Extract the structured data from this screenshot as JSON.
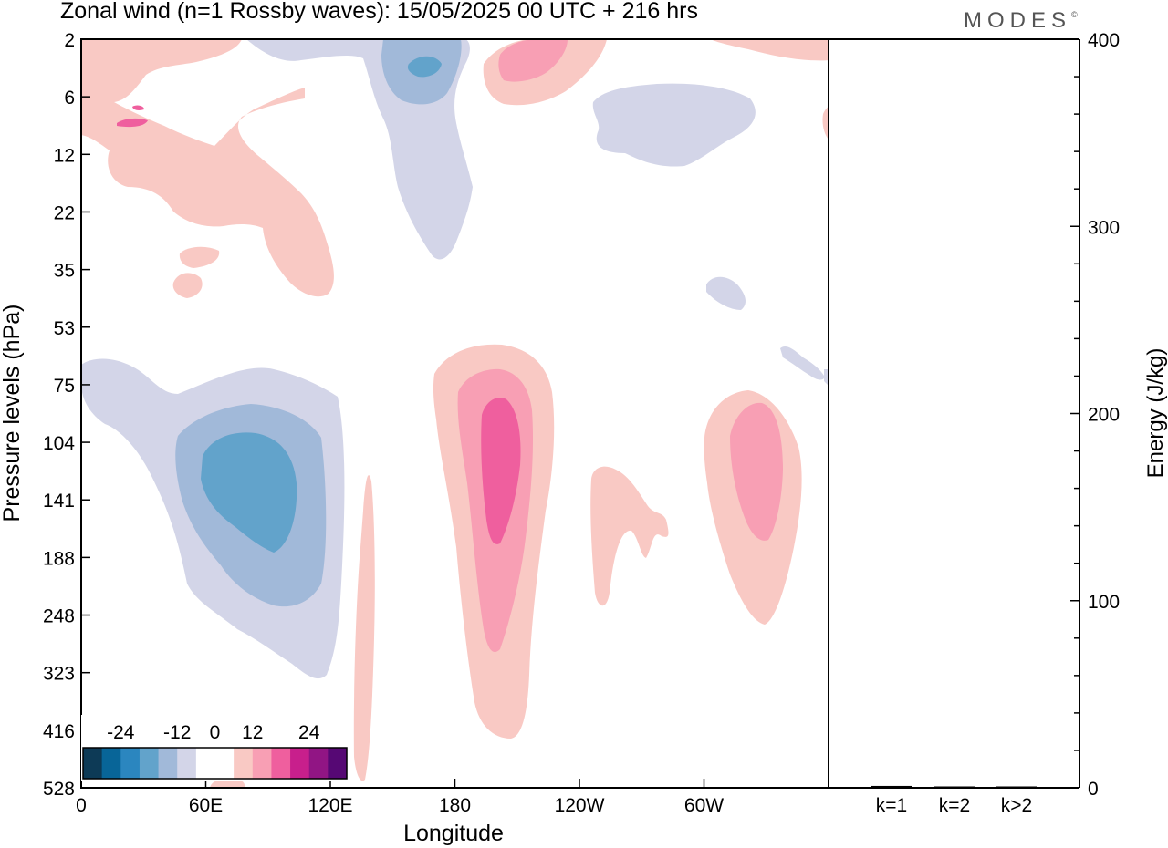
{
  "header": {
    "title": "Zonal wind (n=1 Rossby waves):  15/05/2025  00 UTC  + 216 hrs",
    "brand": "MODES",
    "brand_mark": "©"
  },
  "colors": {
    "neg_strong": "#62a3cb",
    "neg_mid": "#a1b9d9",
    "neg_weak": "#d3d5e8",
    "pos_weak": "#f9c9c4",
    "pos_mid": "#f89fb4",
    "pos_strong": "#ef5f9e"
  },
  "chart_data": [
    {
      "type": "contour",
      "title": "Zonal wind (n=1 Rossby waves):  15/05/2025  00 UTC  + 216 hrs",
      "xlabel": "Longitude",
      "ylabel": "Pressure levels (hPa)",
      "x_ticks": [
        "0",
        "60E",
        "120E",
        "180",
        "120W",
        "60W"
      ],
      "y_ticks": [
        "2",
        "6",
        "12",
        "22",
        "35",
        "53",
        "75",
        "104",
        "141",
        "188",
        "248",
        "323",
        "416",
        "528"
      ],
      "colorbar": {
        "labels": [
          "-24",
          "-12",
          "0",
          "12",
          "24"
        ],
        "colors": [
          "#0d3a56",
          "#086598",
          "#2b86bf",
          "#62a3cb",
          "#a1b9d9",
          "#d3d5e8",
          "#ffffff",
          "#ffffff",
          "#f9c9c4",
          "#f89fb4",
          "#ef5f9e",
          "#c81f8c",
          "#911584",
          "#560874"
        ]
      }
    },
    {
      "type": "bar",
      "ylabel": "Energy (J/kg)",
      "categories": [
        "k=1",
        "k=2",
        "k>2"
      ],
      "values": [
        1,
        0,
        0
      ],
      "y_ticks": [
        "0",
        "100",
        "200",
        "300",
        "400"
      ],
      "ylim": [
        0,
        400
      ]
    }
  ]
}
